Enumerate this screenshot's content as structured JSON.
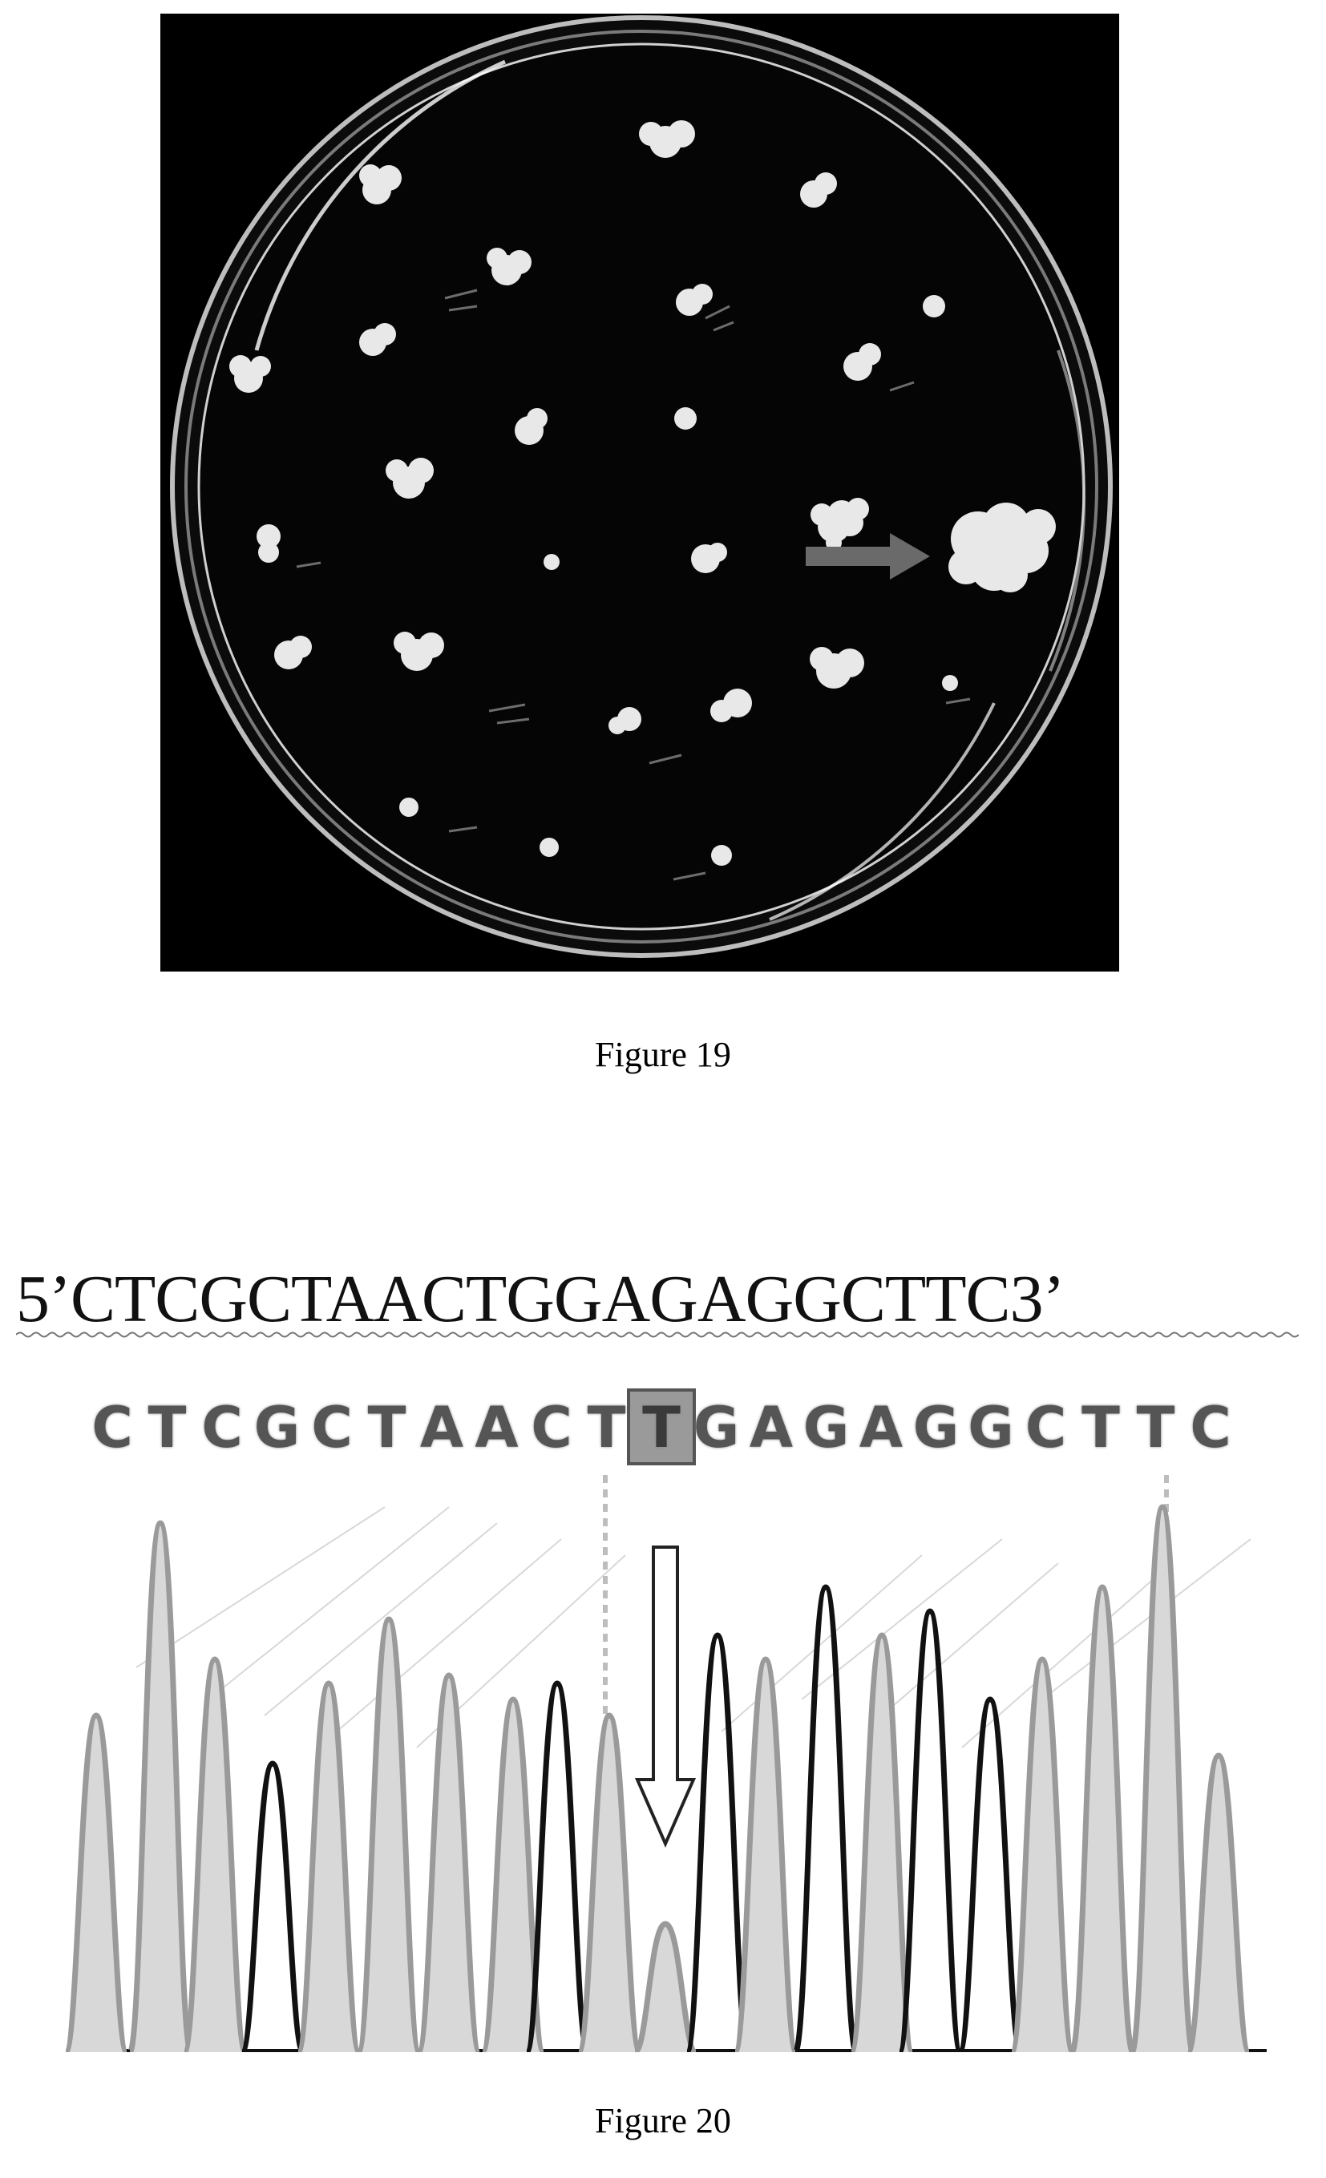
{
  "figure19": {
    "caption": "Figure 19",
    "photo_description_icon": "petri-dish-with-calli"
  },
  "figure20": {
    "caption": "Figure 20",
    "reference_sequence": "5’CTCGCTAACTGGAGAGGCTTC3’",
    "read_bases": [
      "C",
      "T",
      "C",
      "G",
      "C",
      "T",
      "A",
      "A",
      "C",
      "T",
      "T",
      "G",
      "A",
      "G",
      "A",
      "G",
      "G",
      "C",
      "T",
      "T",
      "C"
    ],
    "mutated_base_index": 10,
    "colors": {
      "trace_dark": "#111111",
      "trace_light": "#9a9a9a",
      "fill": "#d8d8d8",
      "highlight": "#9a9a9a"
    }
  }
}
